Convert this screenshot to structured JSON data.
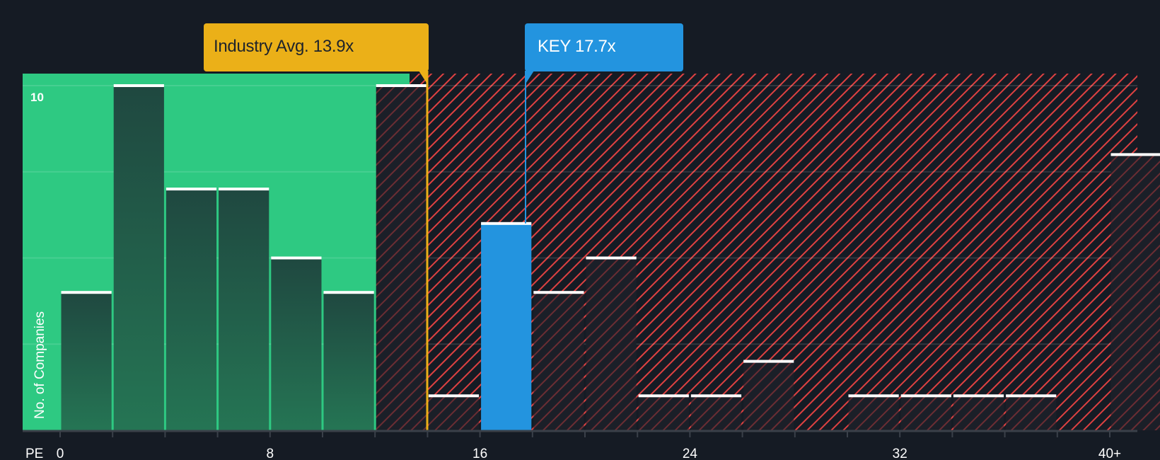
{
  "chart_data": {
    "type": "bar",
    "title": "",
    "xlabel": "PE",
    "ylabel": "No. of Companies",
    "x_tick_labels": [
      "0",
      "8",
      "16",
      "24",
      "32",
      "40+"
    ],
    "y_tick_labels": [
      "10"
    ],
    "ylim": [
      0,
      10.5
    ],
    "bin_width": 2,
    "categories": [
      "0-2",
      "2-4",
      "4-6",
      "6-8",
      "8-10",
      "10-12",
      "12-14",
      "14-16",
      "16-18",
      "18-20",
      "20-22",
      "22-24",
      "24-26",
      "26-28",
      "28-30",
      "30-32",
      "32-34",
      "34-36",
      "36-38",
      "38-40",
      "40+"
    ],
    "values": [
      4,
      10,
      7,
      7,
      5,
      4,
      10,
      1,
      6,
      4,
      5,
      1,
      1,
      2,
      0,
      1,
      1,
      1,
      1,
      0,
      8
    ],
    "highlight_bin": "16-18",
    "annotations": [
      {
        "label": "Industry Avg. 13.9x",
        "value": 13.9,
        "color": "#ebb018"
      },
      {
        "label": "KEY 17.7x",
        "value": 17.7,
        "color": "#2394df"
      }
    ],
    "regions": [
      {
        "name": "below-average",
        "from": 0,
        "to": 13.5,
        "color": "#2ec982"
      },
      {
        "name": "above-average",
        "from": 13.5,
        "to": 42,
        "pattern": "red-hatch",
        "color": "#e04141"
      }
    ],
    "grid": true
  },
  "labels": {
    "industry_avg": "Industry Avg. 13.9x",
    "key": "KEY 17.7x",
    "y_axis": "No. of Companies",
    "x_axis": "PE",
    "y_max_tick": "10"
  },
  "colors": {
    "background": "#151b24",
    "green_region": "#2ec982",
    "green_bar": "#214d40",
    "highlight": "#2394df",
    "industry_line": "#ebb018",
    "hatch": "#e04141"
  }
}
